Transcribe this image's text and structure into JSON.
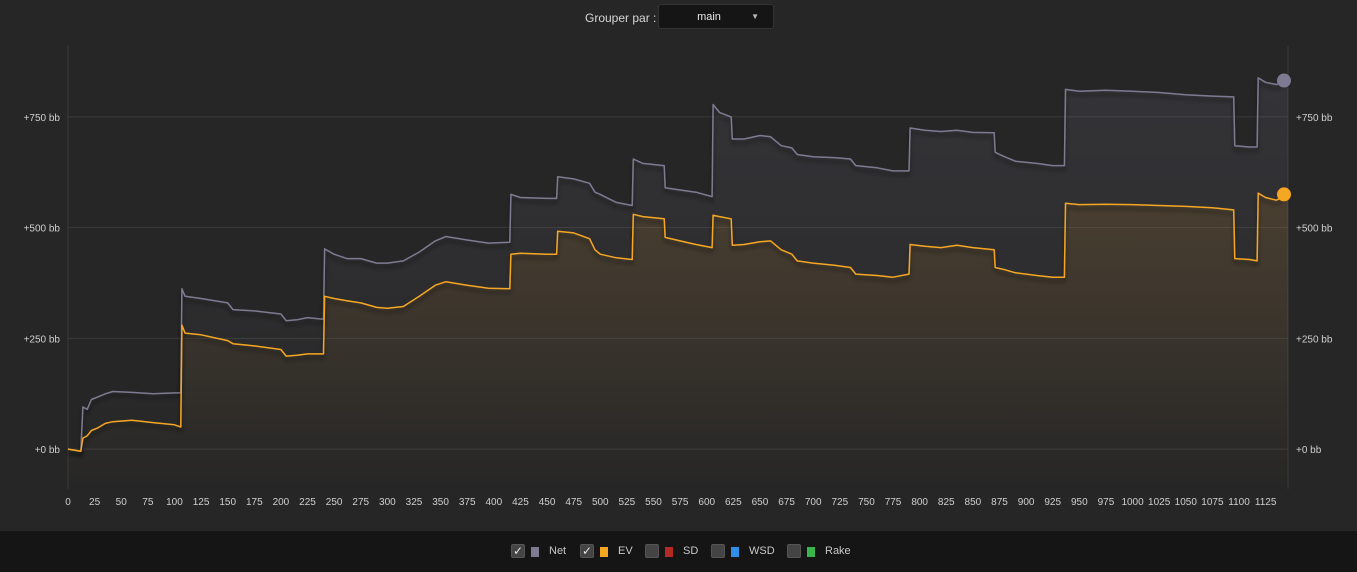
{
  "group_by": {
    "label": "Grouper par :",
    "value": "main"
  },
  "legend": [
    {
      "label": "Net",
      "checked": true,
      "color": "#7e7a92"
    },
    {
      "label": "EV",
      "checked": true,
      "color": "#f5a623"
    },
    {
      "label": "SD",
      "checked": false,
      "color": "#b52a22"
    },
    {
      "label": "WSD",
      "checked": false,
      "color": "#2f8fe8"
    },
    {
      "label": "Rake",
      "checked": false,
      "color": "#39b54a"
    }
  ],
  "chart_data": {
    "type": "line",
    "x_ticks": [
      0,
      25,
      50,
      75,
      100,
      125,
      150,
      175,
      200,
      225,
      250,
      275,
      300,
      325,
      350,
      375,
      400,
      425,
      450,
      475,
      500,
      525,
      550,
      575,
      600,
      625,
      650,
      675,
      700,
      725,
      750,
      775,
      800,
      825,
      850,
      875,
      900,
      925,
      950,
      975,
      1000,
      1025,
      1050,
      1075,
      1100,
      1125
    ],
    "y_ticks": [
      "+0 bb",
      "+250 bb",
      "+500 bb",
      "+750 bb"
    ],
    "y_tick_values": [
      0,
      250,
      500,
      750
    ],
    "xlim": [
      0,
      1146
    ],
    "ylim": [
      -90,
      910
    ],
    "grid": true,
    "series": [
      {
        "name": "Net",
        "color": "#7e7a92",
        "points": [
          [
            0,
            0
          ],
          [
            12,
            -5
          ],
          [
            14,
            95
          ],
          [
            18,
            90
          ],
          [
            22,
            112
          ],
          [
            28,
            118
          ],
          [
            35,
            125
          ],
          [
            42,
            130
          ],
          [
            60,
            128
          ],
          [
            80,
            125
          ],
          [
            100,
            127
          ],
          [
            106,
            127
          ],
          [
            107,
            362
          ],
          [
            110,
            345
          ],
          [
            125,
            340
          ],
          [
            150,
            330
          ],
          [
            155,
            315
          ],
          [
            175,
            312
          ],
          [
            200,
            305
          ],
          [
            205,
            290
          ],
          [
            215,
            292
          ],
          [
            225,
            297
          ],
          [
            240,
            293
          ],
          [
            241,
            452
          ],
          [
            250,
            440
          ],
          [
            262,
            430
          ],
          [
            275,
            430
          ],
          [
            290,
            420
          ],
          [
            300,
            420
          ],
          [
            315,
            425
          ],
          [
            330,
            445
          ],
          [
            345,
            470
          ],
          [
            355,
            480
          ],
          [
            375,
            472
          ],
          [
            395,
            465
          ],
          [
            415,
            467
          ],
          [
            416,
            575
          ],
          [
            425,
            568
          ],
          [
            450,
            566
          ],
          [
            459,
            566
          ],
          [
            460,
            615
          ],
          [
            475,
            610
          ],
          [
            490,
            600
          ],
          [
            495,
            580
          ],
          [
            500,
            575
          ],
          [
            515,
            557
          ],
          [
            530,
            550
          ],
          [
            531,
            655
          ],
          [
            540,
            645
          ],
          [
            560,
            640
          ],
          [
            561,
            590
          ],
          [
            575,
            585
          ],
          [
            590,
            580
          ],
          [
            605,
            570
          ],
          [
            606,
            778
          ],
          [
            612,
            760
          ],
          [
            623,
            750
          ],
          [
            624,
            700
          ],
          [
            635,
            700
          ],
          [
            650,
            708
          ],
          [
            660,
            705
          ],
          [
            670,
            685
          ],
          [
            680,
            680
          ],
          [
            685,
            665
          ],
          [
            700,
            660
          ],
          [
            720,
            658
          ],
          [
            735,
            655
          ],
          [
            740,
            640
          ],
          [
            760,
            635
          ],
          [
            775,
            628
          ],
          [
            790,
            628
          ],
          [
            791,
            725
          ],
          [
            805,
            720
          ],
          [
            820,
            717
          ],
          [
            835,
            720
          ],
          [
            850,
            715
          ],
          [
            870,
            714
          ],
          [
            871,
            670
          ],
          [
            880,
            660
          ],
          [
            890,
            650
          ],
          [
            910,
            645
          ],
          [
            925,
            640
          ],
          [
            936,
            640
          ],
          [
            937,
            812
          ],
          [
            950,
            808
          ],
          [
            975,
            810
          ],
          [
            1000,
            808
          ],
          [
            1025,
            805
          ],
          [
            1050,
            800
          ],
          [
            1075,
            797
          ],
          [
            1095,
            795
          ],
          [
            1096,
            685
          ],
          [
            1110,
            682
          ],
          [
            1117,
            682
          ],
          [
            1118,
            838
          ],
          [
            1125,
            828
          ],
          [
            1135,
            823
          ],
          [
            1146,
            832
          ]
        ]
      },
      {
        "name": "EV",
        "color": "#f5a623",
        "points": [
          [
            0,
            0
          ],
          [
            12,
            -5
          ],
          [
            14,
            25
          ],
          [
            18,
            30
          ],
          [
            22,
            42
          ],
          [
            28,
            48
          ],
          [
            35,
            58
          ],
          [
            42,
            62
          ],
          [
            60,
            65
          ],
          [
            80,
            60
          ],
          [
            100,
            55
          ],
          [
            106,
            50
          ],
          [
            107,
            280
          ],
          [
            110,
            262
          ],
          [
            125,
            258
          ],
          [
            150,
            245
          ],
          [
            155,
            238
          ],
          [
            175,
            233
          ],
          [
            200,
            225
          ],
          [
            205,
            210
          ],
          [
            215,
            212
          ],
          [
            225,
            215
          ],
          [
            240,
            215
          ],
          [
            241,
            345
          ],
          [
            250,
            340
          ],
          [
            262,
            335
          ],
          [
            275,
            330
          ],
          [
            290,
            320
          ],
          [
            300,
            318
          ],
          [
            315,
            322
          ],
          [
            330,
            345
          ],
          [
            345,
            370
          ],
          [
            355,
            378
          ],
          [
            375,
            370
          ],
          [
            395,
            363
          ],
          [
            415,
            362
          ],
          [
            416,
            440
          ],
          [
            425,
            442
          ],
          [
            450,
            440
          ],
          [
            459,
            440
          ],
          [
            460,
            492
          ],
          [
            475,
            488
          ],
          [
            490,
            475
          ],
          [
            495,
            450
          ],
          [
            500,
            440
          ],
          [
            515,
            432
          ],
          [
            530,
            428
          ],
          [
            531,
            530
          ],
          [
            540,
            525
          ],
          [
            560,
            520
          ],
          [
            561,
            478
          ],
          [
            575,
            470
          ],
          [
            590,
            462
          ],
          [
            605,
            455
          ],
          [
            606,
            528
          ],
          [
            612,
            525
          ],
          [
            623,
            520
          ],
          [
            624,
            460
          ],
          [
            635,
            462
          ],
          [
            650,
            468
          ],
          [
            660,
            470
          ],
          [
            670,
            450
          ],
          [
            680,
            440
          ],
          [
            685,
            425
          ],
          [
            700,
            420
          ],
          [
            720,
            415
          ],
          [
            735,
            410
          ],
          [
            740,
            395
          ],
          [
            760,
            392
          ],
          [
            775,
            388
          ],
          [
            790,
            395
          ],
          [
            791,
            462
          ],
          [
            805,
            458
          ],
          [
            820,
            455
          ],
          [
            835,
            460
          ],
          [
            850,
            455
          ],
          [
            870,
            450
          ],
          [
            871,
            410
          ],
          [
            880,
            405
          ],
          [
            890,
            398
          ],
          [
            910,
            392
          ],
          [
            925,
            388
          ],
          [
            936,
            388
          ],
          [
            937,
            555
          ],
          [
            950,
            552
          ],
          [
            975,
            553
          ],
          [
            1000,
            552
          ],
          [
            1025,
            550
          ],
          [
            1050,
            548
          ],
          [
            1075,
            545
          ],
          [
            1095,
            540
          ],
          [
            1096,
            430
          ],
          [
            1110,
            428
          ],
          [
            1117,
            425
          ],
          [
            1118,
            578
          ],
          [
            1125,
            568
          ],
          [
            1135,
            562
          ],
          [
            1146,
            575
          ]
        ]
      }
    ]
  }
}
